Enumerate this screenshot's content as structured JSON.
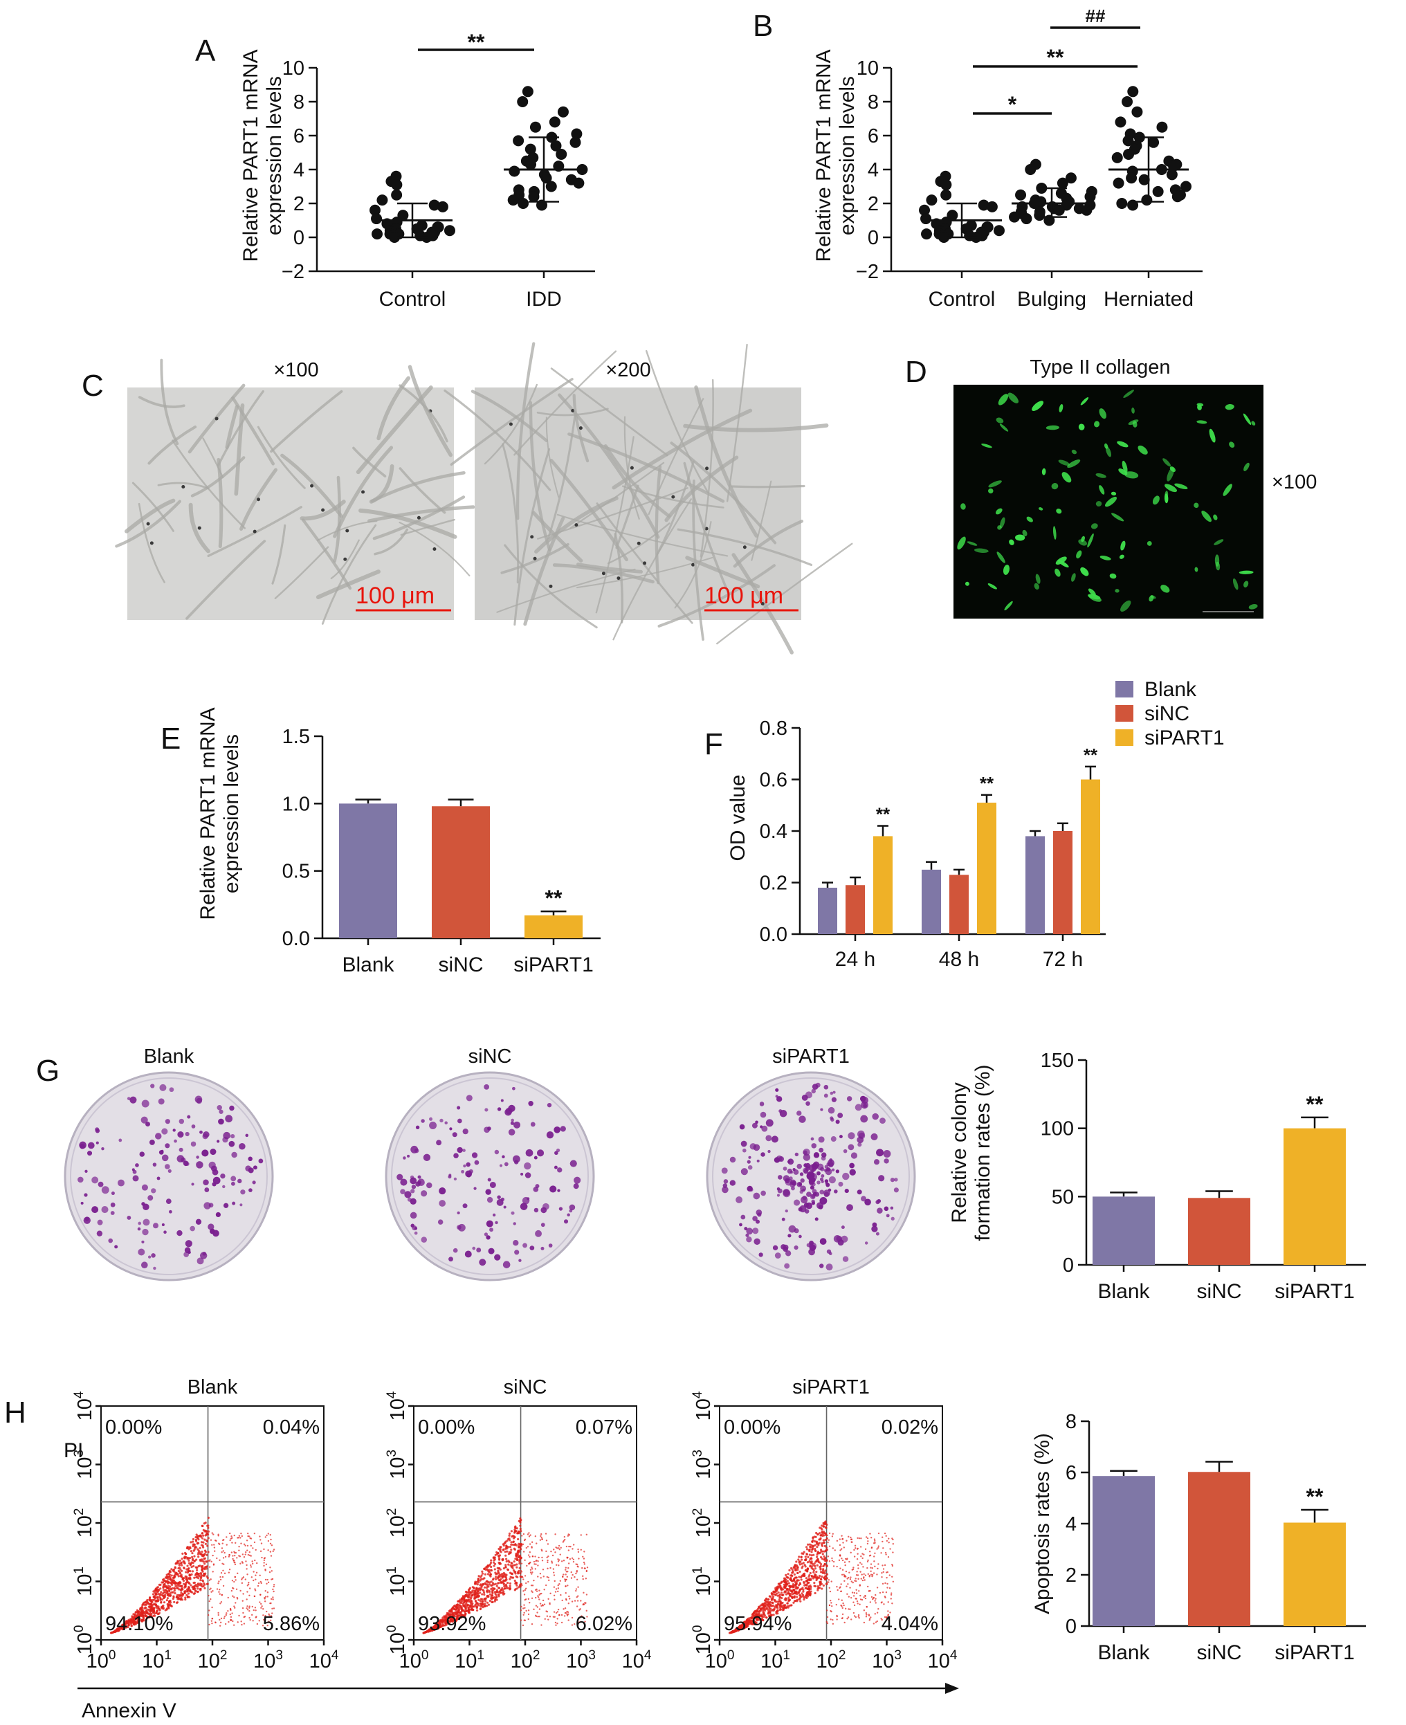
{
  "panels": {
    "A": {
      "label": "A",
      "ylabel": [
        "Relative PART1 mRNA",
        "expression levels"
      ]
    },
    "B": {
      "label": "B",
      "ylabel": [
        "Relative PART1 mRNA",
        "expression levels"
      ]
    },
    "C": {
      "label": "C",
      "mag_left": "×100",
      "mag_right": "×200",
      "scalebar_left": "100 μm",
      "scalebar_right": "100 μm"
    },
    "D": {
      "label": "D",
      "title": "Type II collagen",
      "mag": "×100"
    },
    "E": {
      "label": "E",
      "ylabel": [
        "Relative PART1 mRNA",
        "expression levels"
      ]
    },
    "F": {
      "label": "F",
      "ylabel": "OD value"
    },
    "G": {
      "label": "G",
      "dish_titles": [
        "Blank",
        "siNC",
        "siPART1"
      ],
      "ylabel": [
        "Relative colony",
        "formation rates (%)"
      ]
    },
    "H": {
      "label": "H",
      "plot_titles": [
        "Blank",
        "siNC",
        "siPART1"
      ],
      "ylabel_flow": "PI",
      "xlabel_flow": "Annexin V",
      "ylabel": "Apoptosis rates (%)"
    }
  },
  "colors": {
    "blank": "#7f77a6",
    "sinc": "#d1553a",
    "sipart1": "#efb127",
    "dot": "#111111",
    "flow": "#e0201a",
    "fluor": "#3fe04c"
  },
  "chart_data": [
    {
      "id": "A",
      "type": "scatter",
      "categories": [
        "Control",
        "IDD"
      ],
      "ylim": [
        -2,
        10
      ],
      "yticks": [
        -2,
        0,
        2,
        4,
        6,
        8,
        10
      ],
      "series": [
        {
          "category": "Control",
          "mean": 1.0,
          "sd_low": 0.0,
          "sd_high": 2.0,
          "values": [
            3.6,
            3.3,
            3.1,
            2.5,
            2.2,
            1.9,
            1.8,
            1.6,
            1.3,
            1.1,
            0.9,
            0.8,
            0.7,
            0.6,
            0.6,
            0.5,
            0.5,
            0.4,
            0.4,
            0.3,
            0.3,
            0.3,
            0.2,
            0.2,
            0.2,
            0.1,
            0.1,
            0.1,
            0.0,
            0.0
          ]
        },
        {
          "category": "IDD",
          "mean": 4.0,
          "sd_low": 2.1,
          "sd_high": 5.9,
          "values": [
            8.6,
            8.0,
            7.4,
            6.8,
            6.5,
            6.1,
            5.9,
            5.7,
            5.6,
            5.4,
            5.2,
            4.9,
            4.7,
            4.5,
            4.3,
            4.2,
            4.0,
            3.9,
            3.7,
            3.5,
            3.4,
            3.2,
            3.0,
            2.8,
            2.7,
            2.5,
            2.4,
            2.2,
            2.0,
            1.9
          ]
        }
      ],
      "significance": [
        {
          "from": "Control",
          "to": "IDD",
          "label": "**"
        }
      ]
    },
    {
      "id": "B",
      "type": "scatter",
      "categories": [
        "Control",
        "Bulging",
        "Herniated"
      ],
      "ylim": [
        -2,
        10
      ],
      "yticks": [
        -2,
        0,
        2,
        4,
        6,
        8,
        10
      ],
      "series": [
        {
          "category": "Control",
          "mean": 1.0,
          "sd_low": 0.0,
          "sd_high": 2.0,
          "values": [
            3.6,
            3.3,
            3.1,
            2.5,
            2.2,
            1.9,
            1.8,
            1.6,
            1.3,
            1.1,
            0.9,
            0.8,
            0.7,
            0.6,
            0.6,
            0.5,
            0.5,
            0.4,
            0.4,
            0.3,
            0.3,
            0.3,
            0.2,
            0.2,
            0.2,
            0.1,
            0.1,
            0.1,
            0.0,
            0.0
          ]
        },
        {
          "category": "Bulging",
          "mean": 2.0,
          "sd_low": 1.2,
          "sd_high": 2.9,
          "values": [
            4.3,
            4.0,
            3.5,
            3.2,
            2.9,
            2.7,
            2.6,
            2.5,
            2.4,
            2.3,
            2.2,
            2.1,
            2.1,
            2.0,
            2.0,
            1.9,
            1.9,
            1.8,
            1.8,
            1.7,
            1.7,
            1.6,
            1.6,
            1.5,
            1.5,
            1.4,
            1.3,
            1.2,
            1.1,
            1.0
          ]
        },
        {
          "category": "Herniated",
          "mean": 4.0,
          "sd_low": 2.1,
          "sd_high": 5.9,
          "values": [
            8.6,
            8.0,
            7.4,
            6.8,
            6.5,
            6.1,
            5.9,
            5.7,
            5.6,
            5.4,
            5.2,
            4.9,
            4.7,
            4.5,
            4.3,
            4.2,
            4.0,
            3.9,
            3.7,
            3.5,
            3.4,
            3.2,
            3.0,
            2.8,
            2.7,
            2.5,
            2.4,
            2.2,
            2.0,
            1.9
          ]
        }
      ],
      "significance": [
        {
          "from": "Control",
          "to": "Bulging",
          "label": "*"
        },
        {
          "from": "Control",
          "to": "Herniated",
          "label": "**"
        },
        {
          "from": "Bulging",
          "to": "Herniated",
          "label": "##"
        }
      ]
    },
    {
      "id": "E",
      "type": "bar",
      "categories": [
        "Blank",
        "siNC",
        "siPART1"
      ],
      "values": [
        1.0,
        0.98,
        0.17
      ],
      "errors": [
        0.03,
        0.05,
        0.03
      ],
      "ylim": [
        0,
        1.5
      ],
      "yticks": [
        "0.0",
        "0.5",
        "1.0",
        "1.5"
      ],
      "annotations": [
        {
          "category": "siPART1",
          "label": "**"
        }
      ]
    },
    {
      "id": "F",
      "type": "bar",
      "categories": [
        "24 h",
        "48 h",
        "72 h"
      ],
      "legend": {
        "position": "top-right"
      },
      "ylim": [
        0,
        0.8
      ],
      "yticks": [
        "0.0",
        "0.2",
        "0.4",
        "0.6",
        "0.8"
      ],
      "series": [
        {
          "name": "Blank",
          "values": [
            0.18,
            0.25,
            0.38
          ],
          "errors": [
            0.02,
            0.03,
            0.02
          ]
        },
        {
          "name": "siNC",
          "values": [
            0.19,
            0.23,
            0.4
          ],
          "errors": [
            0.03,
            0.02,
            0.03
          ]
        },
        {
          "name": "siPART1",
          "values": [
            0.38,
            0.51,
            0.6
          ],
          "errors": [
            0.04,
            0.03,
            0.05
          ]
        }
      ],
      "annotations": [
        {
          "category": "24 h",
          "label": "**"
        },
        {
          "category": "48 h",
          "label": "**"
        },
        {
          "category": "72 h",
          "label": "**"
        }
      ]
    },
    {
      "id": "G",
      "type": "bar",
      "categories": [
        "Blank",
        "siNC",
        "siPART1"
      ],
      "values": [
        50,
        49,
        100
      ],
      "errors": [
        3,
        5,
        8
      ],
      "ylim": [
        0,
        150
      ],
      "yticks": [
        "0",
        "50",
        "100",
        "150"
      ],
      "annotations": [
        {
          "category": "siPART1",
          "label": "**"
        }
      ]
    },
    {
      "id": "H-flow",
      "type": "scatter",
      "xticks": [
        "0",
        "1",
        "2",
        "3",
        "4"
      ],
      "yticks": [
        "0",
        "1",
        "2",
        "3",
        "4"
      ],
      "tick_base": "10",
      "plots": [
        {
          "title": "Blank",
          "quadrants": {
            "upper_left": "0.00%",
            "upper_right": "0.04%",
            "lower_left": "94.10%",
            "lower_right": "5.86%"
          }
        },
        {
          "title": "siNC",
          "quadrants": {
            "upper_left": "0.00%",
            "upper_right": "0.07%",
            "lower_left": "93.92%",
            "lower_right": "6.02%"
          }
        },
        {
          "title": "siPART1",
          "quadrants": {
            "upper_left": "0.00%",
            "upper_right": "0.02%",
            "lower_left": "95.94%",
            "lower_right": "4.04%"
          }
        }
      ]
    },
    {
      "id": "H",
      "type": "bar",
      "categories": [
        "Blank",
        "siNC",
        "siPART1"
      ],
      "values": [
        5.86,
        6.02,
        4.04
      ],
      "errors": [
        0.2,
        0.4,
        0.5
      ],
      "ylim": [
        0,
        8
      ],
      "yticks": [
        "0",
        "2",
        "4",
        "6",
        "8"
      ],
      "annotations": [
        {
          "category": "siPART1",
          "label": "**"
        }
      ]
    }
  ]
}
